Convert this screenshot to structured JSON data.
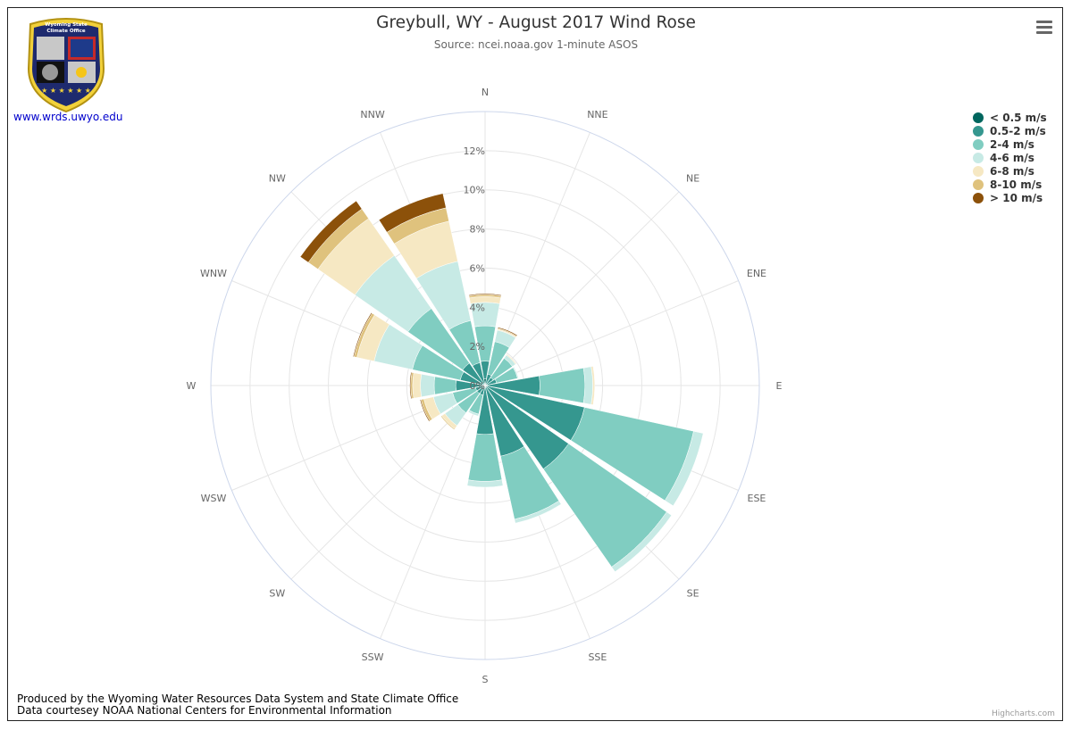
{
  "title": "Greybull, WY - August 2017 Wind Rose",
  "subtitle": "Source: ncei.noaa.gov 1-minute ASOS",
  "logo": {
    "link_text": "www.wrds.uwyo.edu",
    "badge_text": "Wyoming State Climate Office",
    "colors": {
      "navy": "#1e2a6e",
      "gold": "#f2d13a"
    }
  },
  "menu_icon": "hamburger-icon",
  "credits": {
    "line1": "Produced by the Wyoming Water Resources Data System and State Climate Office",
    "line2": "Data courtesey NOAA National Centers for Environmental Information",
    "highcharts": "Highcharts.com"
  },
  "chart_data": {
    "type": "bar",
    "subtype": "polar-stacked-wind-rose",
    "categories": [
      "N",
      "NNE",
      "NE",
      "ENE",
      "E",
      "ESE",
      "SE",
      "SSE",
      "S",
      "SSW",
      "SW",
      "WSW",
      "W",
      "WNW",
      "NW",
      "NNW"
    ],
    "radial_ticks": [
      "0%",
      "2%",
      "4%",
      "6%",
      "8%",
      "10%",
      "12%"
    ],
    "radial_max": 14,
    "series": [
      {
        "name": "< 0.5 m/s",
        "color": "#01665e",
        "values": [
          0.35,
          0.1,
          0.1,
          0.1,
          0.1,
          0.1,
          0.1,
          0.1,
          0.1,
          0.1,
          0.1,
          0.1,
          0.1,
          0.1,
          0.1,
          0.1
        ]
      },
      {
        "name": "0.5-2 m/s",
        "color": "#35978f",
        "values": [
          0.9,
          0.5,
          0.4,
          0.5,
          2.7,
          5.1,
          5.1,
          3.6,
          2.4,
          0.4,
          0.4,
          0.4,
          1.4,
          1.2,
          1.3,
          1.1
        ]
      },
      {
        "name": "2-4 m/s",
        "color": "#80cdc1",
        "values": [
          1.8,
          1.7,
          1.2,
          1.1,
          2.3,
          5.7,
          6.1,
          3.3,
          2.4,
          1.0,
          1.2,
          1.2,
          1.1,
          2.5,
          3.4,
          2.2
        ]
      },
      {
        "name": "4-6 m/s",
        "color": "#c7eae5",
        "values": [
          1.2,
          0.6,
          0.2,
          0.05,
          0.4,
          0.5,
          0.3,
          0.2,
          0.3,
          0.1,
          0.8,
          1.0,
          0.7,
          2.0,
          3.3,
          3.1
        ]
      },
      {
        "name": "6-8 m/s",
        "color": "#f6e8c3",
        "values": [
          0.3,
          0.05,
          0.05,
          0,
          0.1,
          0,
          0,
          0,
          0,
          0,
          0.2,
          0.5,
          0.4,
          0.9,
          2.3,
          2.1
        ]
      },
      {
        "name": "8-10 m/s",
        "color": "#dfc27d",
        "values": [
          0.1,
          0.05,
          0,
          0,
          0,
          0,
          0,
          0,
          0,
          0,
          0.05,
          0.15,
          0.1,
          0.15,
          0.6,
          0.7
        ]
      },
      {
        "name": "> 10 m/s",
        "color": "#8c510a",
        "values": [
          0.05,
          0.05,
          0,
          0,
          0,
          0,
          0,
          0,
          0,
          0,
          0,
          0.05,
          0.05,
          0.05,
          0.5,
          0.75
        ]
      }
    ]
  }
}
